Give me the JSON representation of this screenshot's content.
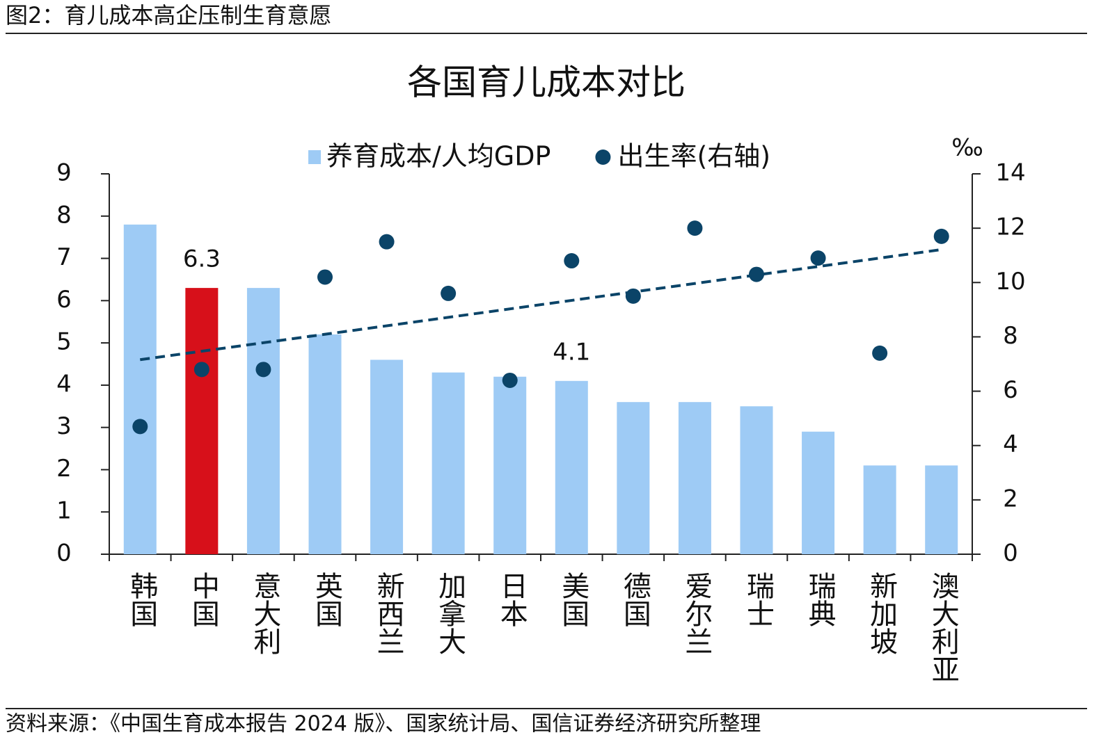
{
  "header": "图2：育儿成本高企压制生育意愿",
  "source": "资料来源：《中国生育成本报告 2024 版》、国家统计局、国信证券经济研究所整理",
  "chart_data": {
    "type": "bar",
    "title": "各国育儿成本对比",
    "categories": [
      "韩国",
      "中国",
      "意大利",
      "英国",
      "新西兰",
      "加拿大",
      "日本",
      "美国",
      "德国",
      "爱尔兰",
      "瑞士",
      "瑞典",
      "新加坡",
      "澳大利亚"
    ],
    "series": [
      {
        "name": "养育成本/人均GDP",
        "type": "bar",
        "color": "#9ecbf5",
        "colors": [
          "#9ecbf5",
          "#d7101a",
          "#9ecbf5",
          "#9ecbf5",
          "#9ecbf5",
          "#9ecbf5",
          "#9ecbf5",
          "#9ecbf5",
          "#9ecbf5",
          "#9ecbf5",
          "#9ecbf5",
          "#9ecbf5",
          "#9ecbf5",
          "#9ecbf5"
        ],
        "values": [
          7.8,
          6.3,
          6.3,
          5.2,
          4.6,
          4.3,
          4.2,
          4.1,
          3.6,
          3.6,
          3.5,
          2.9,
          2.1,
          2.1
        ],
        "value_labels": [
          null,
          "6.3",
          null,
          null,
          null,
          null,
          null,
          "4.1",
          null,
          null,
          null,
          null,
          null,
          null
        ]
      },
      {
        "name": "出生率(右轴)",
        "type": "scatter",
        "axis": "y2",
        "color": "#0b4468",
        "trendline": "linear",
        "values": [
          4.7,
          6.8,
          6.8,
          10.2,
          11.5,
          9.6,
          6.4,
          10.8,
          9.5,
          12.0,
          10.3,
          10.9,
          7.4,
          11.7
        ]
      }
    ],
    "ylim": [
      0,
      9
    ],
    "yticks": [
      0,
      1,
      2,
      3,
      4,
      5,
      6,
      7,
      8,
      9
    ],
    "y2lim": [
      0,
      14
    ],
    "y2ticks": [
      0,
      2,
      4,
      6,
      8,
      10,
      12,
      14
    ],
    "y2_unit": "‰",
    "legend": "top"
  }
}
